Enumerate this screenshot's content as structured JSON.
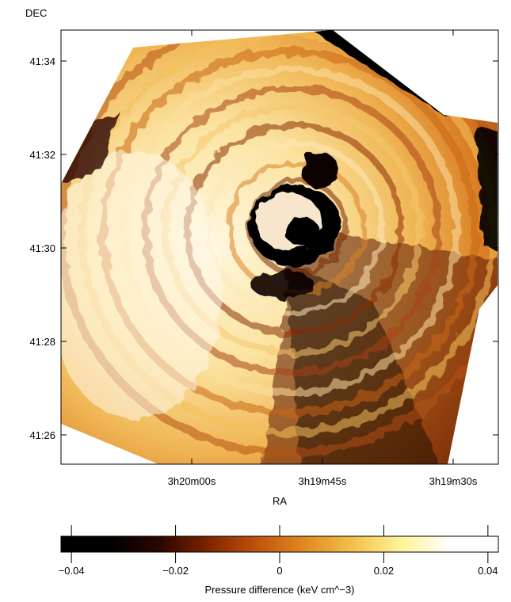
{
  "chart_data": {
    "type": "heatmap",
    "title": "",
    "xlabel": "RA",
    "ylabel": "DEC",
    "x_ticks": [
      "3h20m00s",
      "3h19m45s",
      "3h19m30s"
    ],
    "y_ticks": [
      "41:34",
      "41:32",
      "41:30",
      "41:28",
      "41:26"
    ],
    "colorbar": {
      "label": "Pressure difference (keV cm^−3)",
      "range": [
        -0.042,
        0.042
      ],
      "ticks": [
        "−0.04",
        "−0.02",
        "0",
        "0.02",
        "0.04"
      ],
      "tick_values": [
        -0.04,
        -0.02,
        0,
        0.02,
        0.04
      ],
      "colormap": [
        "#000000",
        "#000000",
        "#2a0500",
        "#7a2300",
        "#c0500c",
        "#e08a20",
        "#f3c04a",
        "#fff49a",
        "#ffffff",
        "#ffffff"
      ]
    },
    "grid": false
  }
}
